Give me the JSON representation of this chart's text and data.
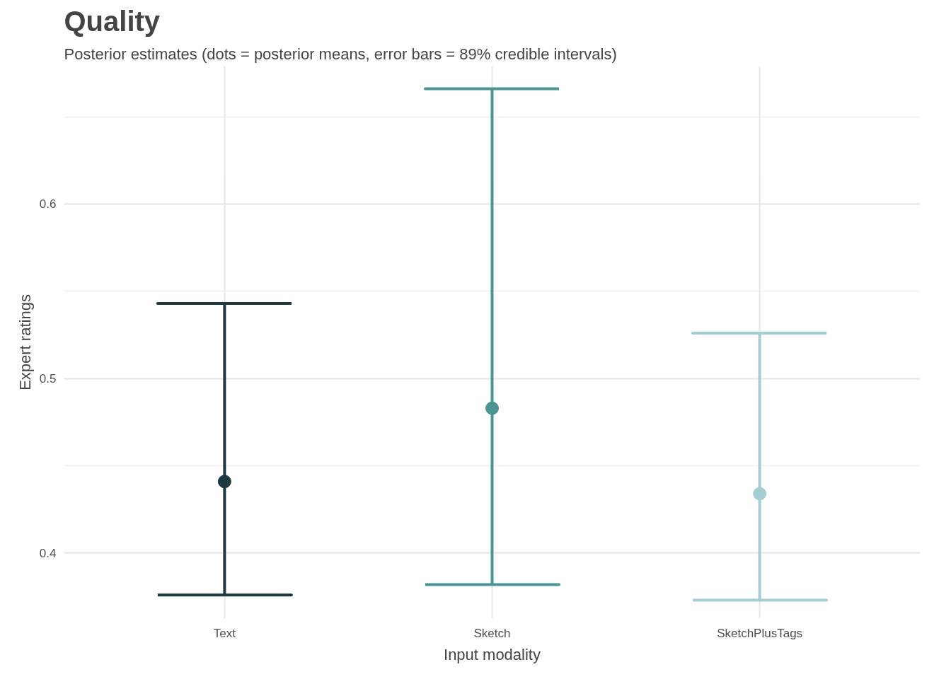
{
  "chart_data": {
    "type": "scatter",
    "title": "Quality",
    "subtitle": "Posterior estimates (dots = posterior means, error bars = 89% credible intervals)",
    "xlabel": "Input modality",
    "ylabel": "Expert ratings",
    "categories": [
      "Text",
      "Sketch",
      "SketchPlusTags"
    ],
    "values": [
      0.441,
      0.483,
      0.434
    ],
    "errors": [
      [
        0.376,
        0.543
      ],
      [
        0.382,
        0.666
      ],
      [
        0.373,
        0.526
      ]
    ],
    "colors": [
      "#1e3a40",
      "#4a9494",
      "#a3ced4"
    ],
    "ylim": [
      0.3625,
      0.679
    ],
    "yticks": [
      0.4,
      {
        "value": 0.45,
        "label": null
      },
      0.5,
      {
        "value": 0.55,
        "label": null
      },
      0.6,
      {
        "value": 0.65,
        "label": null
      }
    ],
    "grid": true,
    "marker": "circle"
  }
}
